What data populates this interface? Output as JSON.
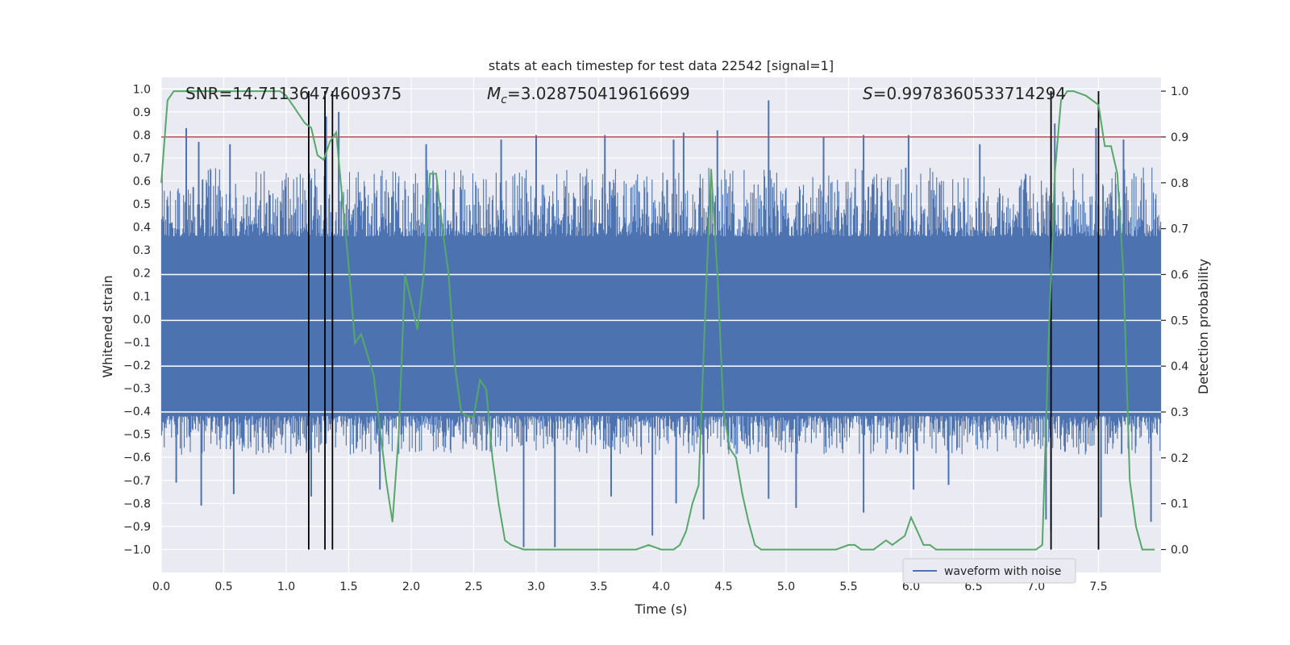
{
  "chart_data": {
    "type": "line",
    "title": "stats at each timestep for test data 22542 [signal=1]",
    "xlabel": "Time (s)",
    "ylabel": "Whitened strain",
    "y2label": "Detection probability",
    "xlim": [
      0.0,
      8.0
    ],
    "ylim": [
      -1.1,
      1.05
    ],
    "y2lim": [
      -0.05,
      1.03
    ],
    "x_ticks": [
      0.0,
      0.5,
      1.0,
      1.5,
      2.0,
      2.5,
      3.0,
      3.5,
      4.0,
      4.5,
      5.0,
      5.5,
      6.0,
      6.5,
      7.0,
      7.5
    ],
    "x_tick_labels": [
      "0.0",
      "0.5",
      "1.0",
      "1.5",
      "2.0",
      "2.5",
      "3.0",
      "3.5",
      "4.0",
      "4.5",
      "5.0",
      "5.5",
      "6.0",
      "6.5",
      "7.0",
      "7.5"
    ],
    "y_ticks": [
      -1.0,
      -0.9,
      -0.8,
      -0.7,
      -0.6,
      -0.5,
      -0.4,
      -0.3,
      -0.2,
      -0.1,
      0.0,
      0.1,
      0.2,
      0.3,
      0.4,
      0.5,
      0.6,
      0.7,
      0.8,
      0.9,
      1.0
    ],
    "y_tick_labels": [
      "−1.0",
      "−0.9",
      "−0.8",
      "−0.7",
      "−0.6",
      "−0.5",
      "−0.4",
      "−0.3",
      "−0.2",
      "−0.1",
      "0.0",
      "0.1",
      "0.2",
      "0.3",
      "0.4",
      "0.5",
      "0.6",
      "0.7",
      "0.8",
      "0.9",
      "1.0"
    ],
    "y2_ticks": [
      0.0,
      0.1,
      0.2,
      0.3,
      0.4,
      0.5,
      0.6,
      0.7,
      0.8,
      0.9,
      1.0
    ],
    "y2_tick_labels": [
      "0.0",
      "0.1",
      "0.2",
      "0.3",
      "0.4",
      "0.5",
      "0.6",
      "0.7",
      "0.8",
      "0.9",
      "1.0"
    ],
    "grid": true,
    "legend": {
      "placement": "lower-right",
      "entries": [
        "waveform with noise"
      ]
    },
    "annotations": [
      {
        "text": "SNR=14.71136474609375"
      },
      {
        "text_symbol": "M",
        "text_sub": "c",
        "text_rest": "=3.028750419616699"
      },
      {
        "text_symbol": "S",
        "text_rest": "=0.9978360533714294"
      }
    ],
    "series": [
      {
        "name": "waveform with noise",
        "kind": "noise-band",
        "color": "#4c72b0",
        "core_range": [
          -0.42,
          0.36
        ],
        "typical_range": [
          -0.55,
          0.6
        ],
        "spikes": [
          {
            "x": 0.2,
            "y": 0.83
          },
          {
            "x": 0.3,
            "y": 0.77
          },
          {
            "x": 0.55,
            "y": 0.76
          },
          {
            "x": 1.42,
            "y": 0.9
          },
          {
            "x": 1.32,
            "y": 0.88
          },
          {
            "x": 2.12,
            "y": 0.76
          },
          {
            "x": 2.72,
            "y": 0.78
          },
          {
            "x": 3.0,
            "y": 0.8
          },
          {
            "x": 3.55,
            "y": 0.8
          },
          {
            "x": 4.1,
            "y": 0.78
          },
          {
            "x": 4.18,
            "y": 0.81
          },
          {
            "x": 4.45,
            "y": 0.82
          },
          {
            "x": 4.86,
            "y": 0.95
          },
          {
            "x": 5.3,
            "y": 0.79
          },
          {
            "x": 5.62,
            "y": 0.8
          },
          {
            "x": 5.98,
            "y": 0.8
          },
          {
            "x": 6.55,
            "y": 0.76
          },
          {
            "x": 7.15,
            "y": 0.85
          },
          {
            "x": 7.48,
            "y": 0.83
          },
          {
            "x": 7.7,
            "y": 0.78
          },
          {
            "x": 0.12,
            "y": -0.71
          },
          {
            "x": 0.32,
            "y": -0.81
          },
          {
            "x": 0.58,
            "y": -0.76
          },
          {
            "x": 1.2,
            "y": -0.77
          },
          {
            "x": 1.75,
            "y": -0.74
          },
          {
            "x": 2.9,
            "y": -0.99
          },
          {
            "x": 3.15,
            "y": -0.99
          },
          {
            "x": 3.6,
            "y": -0.77
          },
          {
            "x": 3.93,
            "y": -0.94
          },
          {
            "x": 4.12,
            "y": -0.8
          },
          {
            "x": 4.34,
            "y": -0.87
          },
          {
            "x": 4.86,
            "y": -0.78
          },
          {
            "x": 5.08,
            "y": -0.82
          },
          {
            "x": 5.62,
            "y": -0.84
          },
          {
            "x": 6.02,
            "y": -0.74
          },
          {
            "x": 7.08,
            "y": -0.87
          },
          {
            "x": 7.12,
            "y": -0.92
          },
          {
            "x": 7.52,
            "y": -0.86
          },
          {
            "x": 7.92,
            "y": -0.88
          },
          {
            "x": 6.3,
            "y": -0.72
          }
        ]
      },
      {
        "name": "detection probability",
        "kind": "line",
        "axis": "right",
        "color": "#55a868",
        "x": [
          0.0,
          0.05,
          0.1,
          0.2,
          0.3,
          0.5,
          0.8,
          0.95,
          1.0,
          1.05,
          1.1,
          1.15,
          1.2,
          1.25,
          1.3,
          1.35,
          1.4,
          1.45,
          1.5,
          1.55,
          1.6,
          1.7,
          1.8,
          1.85,
          1.9,
          1.95,
          2.0,
          2.05,
          2.1,
          2.15,
          2.2,
          2.25,
          2.3,
          2.35,
          2.4,
          2.45,
          2.5,
          2.55,
          2.6,
          2.65,
          2.7,
          2.75,
          2.8,
          2.9,
          3.0,
          3.2,
          3.4,
          3.6,
          3.8,
          3.9,
          4.0,
          4.05,
          4.1,
          4.15,
          4.2,
          4.25,
          4.3,
          4.35,
          4.4,
          4.45,
          4.5,
          4.55,
          4.6,
          4.65,
          4.7,
          4.75,
          4.8,
          5.0,
          5.2,
          5.4,
          5.5,
          5.55,
          5.6,
          5.7,
          5.8,
          5.85,
          5.9,
          5.95,
          6.0,
          6.05,
          6.1,
          6.15,
          6.2,
          6.3,
          6.4,
          6.6,
          6.8,
          7.0,
          7.05,
          7.1,
          7.15,
          7.2,
          7.25,
          7.3,
          7.4,
          7.5,
          7.55,
          7.6,
          7.65,
          7.7,
          7.75,
          7.8,
          7.85,
          7.9,
          7.95
        ],
        "y": [
          0.8,
          0.98,
          1.0,
          1.0,
          1.0,
          1.0,
          1.0,
          1.0,
          0.99,
          0.97,
          0.95,
          0.93,
          0.92,
          0.86,
          0.85,
          0.89,
          0.91,
          0.76,
          0.62,
          0.45,
          0.47,
          0.38,
          0.15,
          0.06,
          0.25,
          0.6,
          0.54,
          0.48,
          0.6,
          0.82,
          0.82,
          0.7,
          0.6,
          0.4,
          0.3,
          0.29,
          0.29,
          0.37,
          0.35,
          0.2,
          0.1,
          0.02,
          0.01,
          0.0,
          0.0,
          0.0,
          0.0,
          0.0,
          0.0,
          0.01,
          0.0,
          0.0,
          0.0,
          0.01,
          0.04,
          0.1,
          0.14,
          0.5,
          0.83,
          0.6,
          0.3,
          0.22,
          0.2,
          0.12,
          0.06,
          0.01,
          0.0,
          0.0,
          0.0,
          0.0,
          0.01,
          0.01,
          0.0,
          0.0,
          0.02,
          0.01,
          0.02,
          0.03,
          0.07,
          0.04,
          0.01,
          0.01,
          0.0,
          0.0,
          0.0,
          0.0,
          0.0,
          0.0,
          0.01,
          0.45,
          0.82,
          0.98,
          1.0,
          1.0,
          0.99,
          0.97,
          0.88,
          0.88,
          0.82,
          0.6,
          0.15,
          0.05,
          0.0,
          0.0,
          0.0
        ]
      }
    ],
    "threshold": {
      "axis": "right",
      "value": 0.9,
      "color": "#c44e52"
    },
    "vertical_markers": {
      "x": [
        1.18,
        1.31,
        1.37,
        7.12,
        7.5
      ],
      "color": "#000000"
    }
  }
}
